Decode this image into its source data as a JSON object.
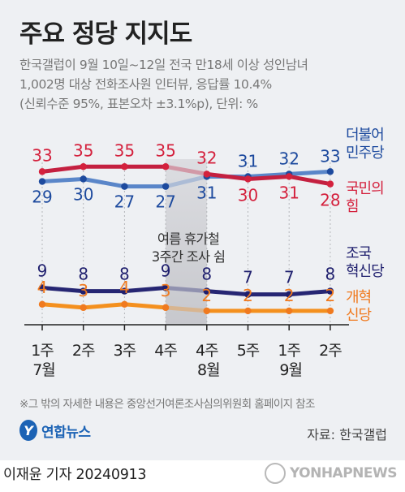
{
  "title": "주요 정당 지지도",
  "subtitle": [
    "한국갤럽이 9월 10일~12일 전국 만18세 이상 성인남녀",
    "1,002명 대상 전화조사원 인터뷰, 응답률 10.4%",
    "(신뢰수준 95%, 표본오차 ±3.1%p), 단위: %"
  ],
  "chart_data": {
    "type": "line",
    "categories": [
      {
        "week": "1주",
        "month": "7월"
      },
      {
        "week": "2주",
        "month": ""
      },
      {
        "week": "3주",
        "month": ""
      },
      {
        "week": "4주",
        "month": ""
      },
      {
        "week": "4주",
        "month": "8월"
      },
      {
        "week": "5주",
        "month": ""
      },
      {
        "week": "1주",
        "month": "9월"
      },
      {
        "week": "2주",
        "month": ""
      }
    ],
    "annotation": [
      "여름 휴가철",
      "3주간 조사 쉼"
    ],
    "gap_after_index": 3,
    "series": [
      {
        "name": "더불어 민주당",
        "label_lines": [
          "더불어",
          "민주당"
        ],
        "values": [
          29,
          30,
          27,
          27,
          31,
          31,
          32,
          33
        ],
        "color": "#1d4a9e",
        "line_color": "#5a86c9",
        "label_color": "#1d4a9e"
      },
      {
        "name": "국민의 힘",
        "label_lines": [
          "국민의",
          "힘"
        ],
        "values": [
          33,
          35,
          35,
          35,
          32,
          30,
          31,
          28
        ],
        "color": "#d4213d",
        "line_color": "#c42040",
        "label_color": "#d4213d"
      },
      {
        "name": "조국 혁신당",
        "label_lines": [
          "조국",
          "혁신당"
        ],
        "values": [
          9,
          8,
          8,
          9,
          8,
          7,
          7,
          8
        ],
        "color": "#1f1f6e",
        "line_color": "#262673",
        "label_color": "#1f1f6e"
      },
      {
        "name": "개혁 신당",
        "label_lines": [
          "개혁",
          "신당"
        ],
        "values": [
          4,
          3,
          4,
          3,
          2,
          2,
          2,
          2
        ],
        "color": "#f07a1f",
        "line_color": "#f4901e",
        "label_color": "#f07a1f"
      }
    ]
  },
  "footnote": "※그 밖의 자세한 내용은 중앙선거여론조사심의위원회 홈페이지 참조",
  "logo_text": "연합뉴스",
  "source": "자료: 한국갤럽",
  "author": "이재윤 기자 20240913",
  "watermark": "YONHAPNEWS"
}
